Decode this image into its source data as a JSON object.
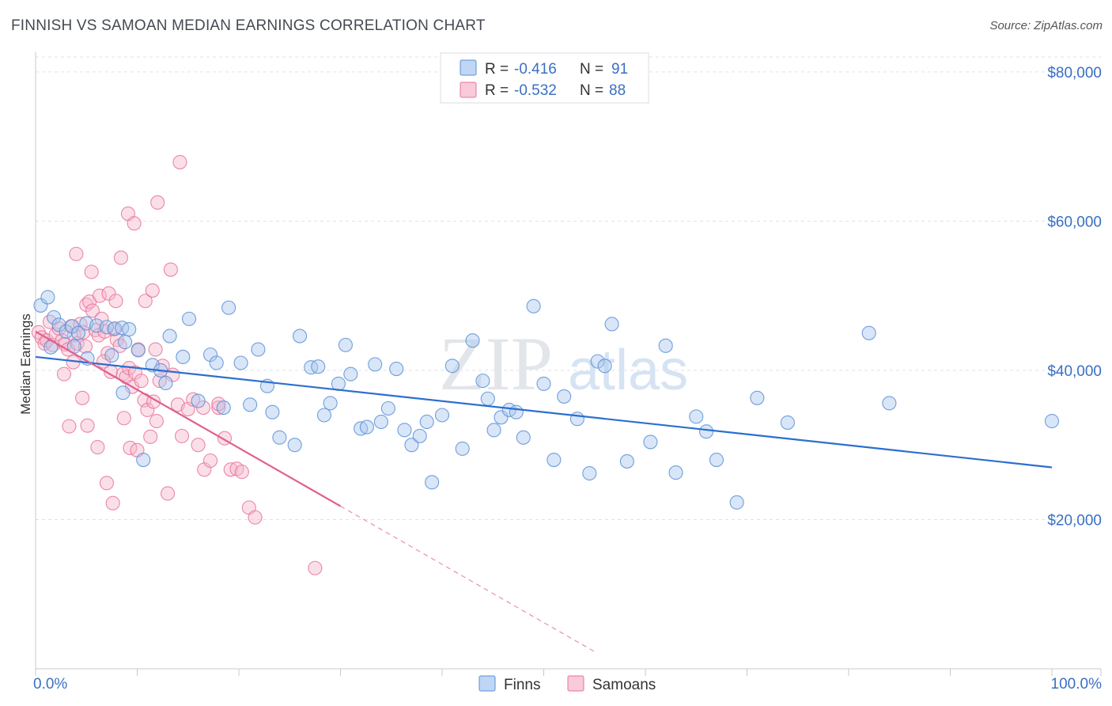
{
  "title": "FINNISH VS SAMOAN MEDIAN EARNINGS CORRELATION CHART",
  "source": "Source: ZipAtlas.com",
  "watermark": {
    "zip": "ZIP",
    "atlas": "atlas"
  },
  "colors": {
    "finns_fill": "#a9c8f0",
    "finns_stroke": "#5b8fd6",
    "finns_line": "#2b6fcf",
    "samoans_fill": "#f7b8cc",
    "samoans_stroke": "#e8739a",
    "samoans_line": "#e0608f",
    "axis_label": "#3a6fc4",
    "grid": "#dde3ea"
  },
  "legend": {
    "r_label": "R =",
    "n_label": "N =",
    "finns": {
      "r": "-0.416",
      "n": "91"
    },
    "samoans": {
      "r": "-0.532",
      "n": "88"
    }
  },
  "bottom_legend": {
    "finns": "Finns",
    "samoans": "Samoans"
  },
  "chart_data": {
    "type": "scatter",
    "title": "FINNISH VS SAMOAN MEDIAN EARNINGS CORRELATION CHART",
    "xlabel": "",
    "ylabel": "Median Earnings",
    "xlim": [
      0,
      100
    ],
    "ylim": [
      0,
      82000
    ],
    "x_tick_labels": [
      "0.0%",
      "100.0%"
    ],
    "y_ticks": [
      20000,
      40000,
      60000,
      80000
    ],
    "y_tick_labels": [
      "$20,000",
      "$40,000",
      "$60,000",
      "$80,000"
    ],
    "grid": true,
    "series": [
      {
        "name": "Finns",
        "r": -0.416,
        "n": 91,
        "trend": {
          "x0": 0,
          "y0": 41800,
          "x1": 100,
          "y1": 27000,
          "dashed_to": 100
        },
        "points": [
          [
            0.5,
            48700
          ],
          [
            1.2,
            49800
          ],
          [
            1.8,
            47100
          ],
          [
            2.3,
            46100
          ],
          [
            3.0,
            45200
          ],
          [
            3.6,
            45900
          ],
          [
            4.2,
            45000
          ],
          [
            5.0,
            46300
          ],
          [
            6.0,
            46000
          ],
          [
            7.0,
            45800
          ],
          [
            7.8,
            45600
          ],
          [
            8.5,
            45700
          ],
          [
            9.2,
            45500
          ],
          [
            1.5,
            43100
          ],
          [
            3.8,
            43200
          ],
          [
            5.1,
            41600
          ],
          [
            7.5,
            42000
          ],
          [
            8.8,
            43800
          ],
          [
            10.1,
            42700
          ],
          [
            11.5,
            40700
          ],
          [
            12.3,
            40000
          ],
          [
            13.2,
            44600
          ],
          [
            14.5,
            41800
          ],
          [
            15.1,
            46900
          ],
          [
            16.0,
            35900
          ],
          [
            17.2,
            42100
          ],
          [
            17.8,
            41000
          ],
          [
            18.5,
            35000
          ],
          [
            19.0,
            48400
          ],
          [
            20.2,
            41000
          ],
          [
            21.1,
            35400
          ],
          [
            21.9,
            42800
          ],
          [
            22.8,
            37900
          ],
          [
            23.3,
            34400
          ],
          [
            24.0,
            31000
          ],
          [
            25.5,
            30000
          ],
          [
            26.0,
            44600
          ],
          [
            27.1,
            40400
          ],
          [
            27.8,
            40500
          ],
          [
            28.4,
            34000
          ],
          [
            29.0,
            35600
          ],
          [
            29.8,
            38200
          ],
          [
            30.5,
            43400
          ],
          [
            31.0,
            39500
          ],
          [
            32.0,
            32200
          ],
          [
            32.6,
            32400
          ],
          [
            33.4,
            40800
          ],
          [
            34.0,
            33100
          ],
          [
            34.7,
            34900
          ],
          [
            35.5,
            40200
          ],
          [
            36.3,
            32000
          ],
          [
            37.0,
            30000
          ],
          [
            37.8,
            31200
          ],
          [
            38.5,
            33100
          ],
          [
            39.0,
            25000
          ],
          [
            40.0,
            34000
          ],
          [
            41.0,
            40600
          ],
          [
            42.0,
            29500
          ],
          [
            43.0,
            44000
          ],
          [
            44.0,
            38600
          ],
          [
            44.5,
            36200
          ],
          [
            45.1,
            32000
          ],
          [
            45.8,
            33700
          ],
          [
            46.6,
            34700
          ],
          [
            47.3,
            34400
          ],
          [
            48.0,
            31000
          ],
          [
            49.0,
            48600
          ],
          [
            50.0,
            38200
          ],
          [
            51.0,
            28000
          ],
          [
            52.0,
            36500
          ],
          [
            53.3,
            33500
          ],
          [
            54.5,
            26200
          ],
          [
            55.3,
            41200
          ],
          [
            56.0,
            40600
          ],
          [
            56.7,
            46200
          ],
          [
            58.2,
            27800
          ],
          [
            60.5,
            30400
          ],
          [
            62.0,
            43300
          ],
          [
            63.0,
            26300
          ],
          [
            65.0,
            33800
          ],
          [
            66.0,
            31800
          ],
          [
            67.0,
            28000
          ],
          [
            69.0,
            22300
          ],
          [
            71.0,
            36300
          ],
          [
            74.0,
            33000
          ],
          [
            82.0,
            45000
          ],
          [
            84.0,
            35600
          ],
          [
            100,
            33200
          ],
          [
            8.6,
            37000
          ],
          [
            12.8,
            38300
          ],
          [
            10.6,
            28000
          ]
        ]
      },
      {
        "name": "Samoans",
        "r": -0.532,
        "n": 88,
        "trend": {
          "x0": 0,
          "y0": 45200,
          "x1": 30,
          "y1": 21800,
          "dashed_to": 55
        },
        "points": [
          [
            0.3,
            45100
          ],
          [
            0.6,
            44400
          ],
          [
            0.9,
            43600
          ],
          [
            1.1,
            44000
          ],
          [
            1.4,
            46500
          ],
          [
            1.7,
            43400
          ],
          [
            2.0,
            44800
          ],
          [
            2.3,
            45600
          ],
          [
            2.6,
            44000
          ],
          [
            2.9,
            43500
          ],
          [
            3.2,
            42800
          ],
          [
            3.5,
            45900
          ],
          [
            3.8,
            44700
          ],
          [
            4.1,
            43600
          ],
          [
            4.4,
            46200
          ],
          [
            4.7,
            45100
          ],
          [
            5.0,
            48800
          ],
          [
            5.3,
            49200
          ],
          [
            5.6,
            48000
          ],
          [
            5.9,
            45400
          ],
          [
            6.2,
            44700
          ],
          [
            6.5,
            46900
          ],
          [
            6.8,
            45200
          ],
          [
            7.1,
            42300
          ],
          [
            7.4,
            39800
          ],
          [
            7.7,
            45500
          ],
          [
            8.0,
            44100
          ],
          [
            8.3,
            43300
          ],
          [
            8.6,
            39500
          ],
          [
            8.9,
            39100
          ],
          [
            9.2,
            40300
          ],
          [
            9.5,
            37800
          ],
          [
            9.8,
            39700
          ],
          [
            10.1,
            42800
          ],
          [
            10.4,
            38600
          ],
          [
            10.7,
            36000
          ],
          [
            11.0,
            34700
          ],
          [
            11.3,
            31100
          ],
          [
            11.6,
            35800
          ],
          [
            11.9,
            33200
          ],
          [
            12.2,
            38600
          ],
          [
            12.5,
            40600
          ],
          [
            13.0,
            23500
          ],
          [
            13.5,
            39400
          ],
          [
            14.0,
            35400
          ],
          [
            14.4,
            31200
          ],
          [
            15.0,
            34800
          ],
          [
            15.5,
            36100
          ],
          [
            16.0,
            30000
          ],
          [
            16.6,
            26700
          ],
          [
            17.2,
            27900
          ],
          [
            18.0,
            35000
          ],
          [
            18.6,
            30900
          ],
          [
            19.2,
            26700
          ],
          [
            19.8,
            26800
          ],
          [
            20.3,
            26400
          ],
          [
            21.0,
            21600
          ],
          [
            21.6,
            20300
          ],
          [
            4.0,
            55600
          ],
          [
            5.5,
            53200
          ],
          [
            6.3,
            50000
          ],
          [
            7.2,
            50300
          ],
          [
            7.9,
            49300
          ],
          [
            8.4,
            55100
          ],
          [
            9.1,
            61000
          ],
          [
            9.7,
            59700
          ],
          [
            10.8,
            49300
          ],
          [
            11.5,
            50700
          ],
          [
            12.0,
            62500
          ],
          [
            13.3,
            53500
          ],
          [
            14.2,
            67900
          ],
          [
            2.8,
            39500
          ],
          [
            3.3,
            32500
          ],
          [
            4.6,
            36300
          ],
          [
            5.1,
            32600
          ],
          [
            6.1,
            29700
          ],
          [
            7.0,
            24900
          ],
          [
            7.6,
            22200
          ],
          [
            8.7,
            33600
          ],
          [
            9.3,
            29600
          ],
          [
            10.0,
            29300
          ],
          [
            27.5,
            13500
          ],
          [
            3.7,
            41100
          ],
          [
            4.9,
            43200
          ],
          [
            6.7,
            41200
          ],
          [
            11.8,
            42800
          ],
          [
            16.5,
            35000
          ],
          [
            18.0,
            35500
          ]
        ]
      }
    ]
  }
}
